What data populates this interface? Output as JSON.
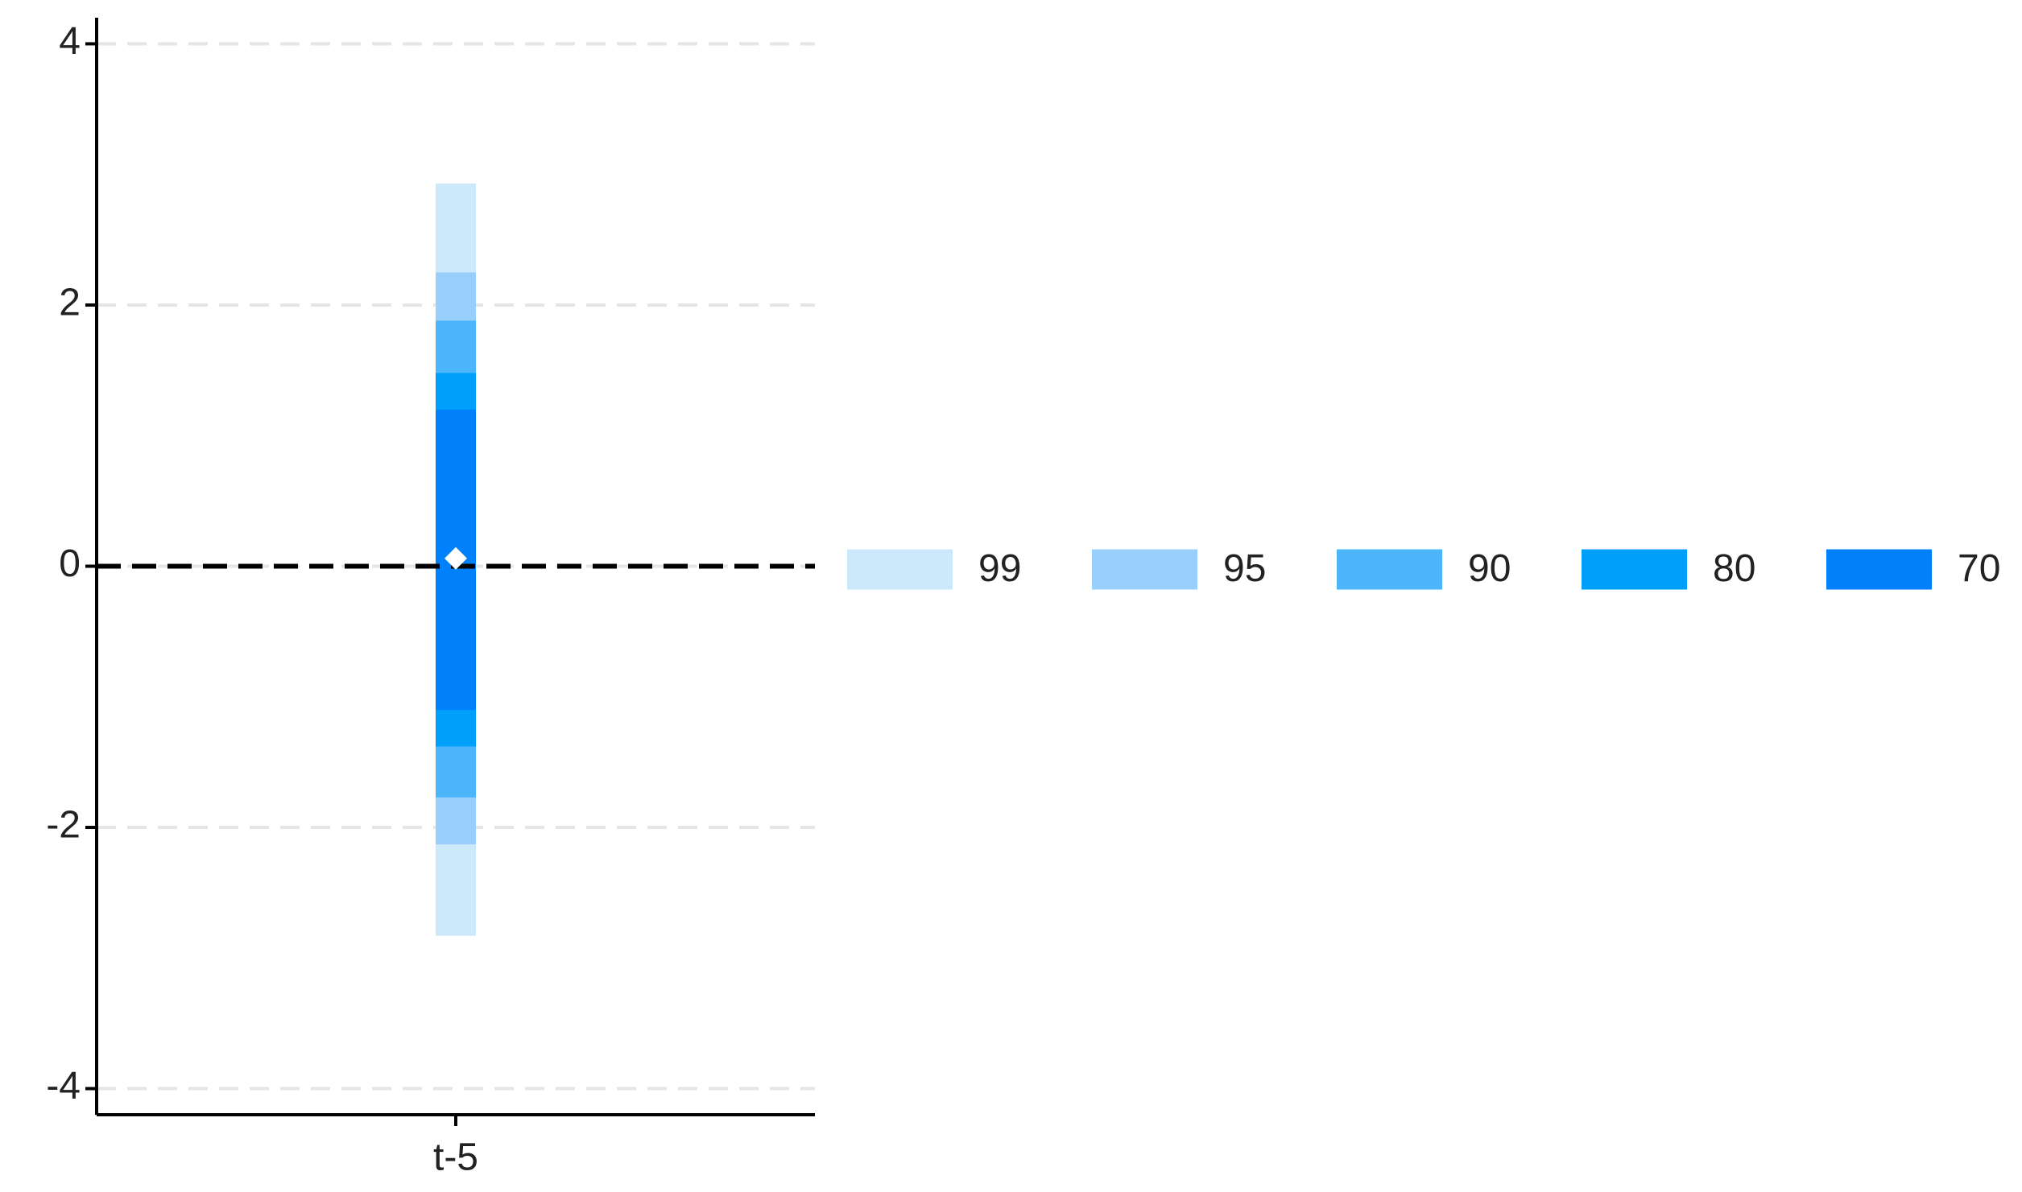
{
  "chart_data": {
    "type": "interval",
    "categories": [
      "t-5"
    ],
    "series": [
      {
        "name": "99",
        "color": "#cce8fb",
        "low": [
          -2.83
        ],
        "high": [
          2.93
        ]
      },
      {
        "name": "95",
        "color": "#99d0fb",
        "low": [
          -2.13
        ],
        "high": [
          2.25
        ]
      },
      {
        "name": "90",
        "color": "#4db6fb",
        "low": [
          -1.77
        ],
        "high": [
          1.88
        ]
      },
      {
        "name": "80",
        "color": "#00a0fa",
        "low": [
          -1.38
        ],
        "high": [
          1.48
        ]
      },
      {
        "name": "70",
        "color": "#0080fb",
        "low": [
          -1.1
        ],
        "high": [
          1.2
        ]
      }
    ],
    "estimate": [
      0.06
    ],
    "hline": 0,
    "ylim": [
      -4.2,
      4.2
    ],
    "yticks": [
      -4,
      -2,
      0,
      2,
      4
    ],
    "grid": true,
    "legend": "right"
  }
}
